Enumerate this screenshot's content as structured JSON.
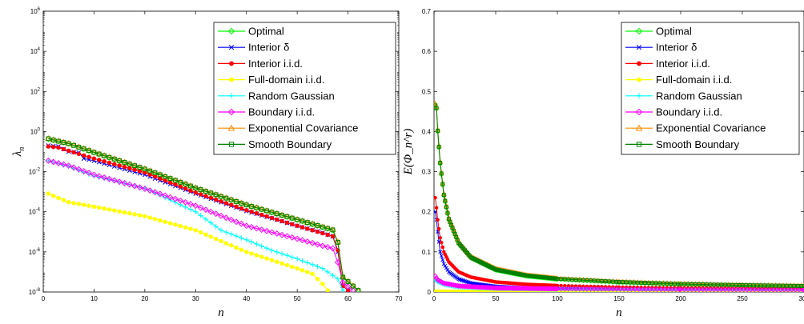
{
  "chart_data": [
    {
      "type": "line",
      "xlabel": "n",
      "ylabel": "λ_n",
      "ylabel_main": "λ",
      "ylabel_sub": "n",
      "xlim": [
        0,
        70
      ],
      "ylim": [
        1e-08,
        1000000.0
      ],
      "yscale": "log",
      "x_ticks": [
        0,
        10,
        20,
        30,
        40,
        50,
        60,
        70
      ],
      "y_ticks": [
        {
          "value": 1e-08,
          "base": "10",
          "exp": "-8"
        },
        {
          "value": 1e-06,
          "base": "10",
          "exp": "-6"
        },
        {
          "value": 0.0001,
          "base": "10",
          "exp": "-4"
        },
        {
          "value": 0.01,
          "base": "10",
          "exp": "-2"
        },
        {
          "value": 1,
          "base": "10",
          "exp": "0"
        },
        {
          "value": 100,
          "base": "10",
          "exp": "2"
        },
        {
          "value": 10000,
          "base": "10",
          "exp": "4"
        },
        {
          "value": 1000000,
          "base": "10",
          "exp": "6"
        }
      ],
      "grid": false,
      "legend_position": "top-right",
      "series": [
        {
          "name": "Optimal",
          "color": "#00ff00",
          "marker": "diamond",
          "points": [
            [
              1,
              0.42
            ],
            [
              5,
              0.25
            ],
            [
              10,
              0.09
            ],
            [
              20,
              0.013
            ],
            [
              30,
              0.0015
            ],
            [
              40,
              0.00022
            ],
            [
              50,
              4e-05
            ],
            [
              55,
              1.7e-05
            ],
            [
              57,
              1.2e-05
            ],
            [
              58,
              3e-06
            ],
            [
              59,
              5e-08
            ],
            [
              62,
              1.2e-08
            ]
          ]
        },
        {
          "name": "Interior δ",
          "color": "#0000ff",
          "marker": "x",
          "points": [
            [
              1,
              0.2
            ],
            [
              3,
              0.18
            ],
            [
              5,
              0.1
            ],
            [
              7,
              0.09
            ],
            [
              8,
              0.045
            ],
            [
              10,
              0.035
            ],
            [
              20,
              0.007
            ],
            [
              30,
              0.0008
            ],
            [
              40,
              0.00011
            ],
            [
              50,
              2e-05
            ],
            [
              55,
              9e-06
            ],
            [
              57,
              6e-06
            ],
            [
              58,
              1e-06
            ],
            [
              59,
              2e-08
            ],
            [
              60,
              1.2e-08
            ]
          ]
        },
        {
          "name": "Interior i.i.d.",
          "color": "#ff0000",
          "marker": "circle",
          "points": [
            [
              1,
              0.18
            ],
            [
              3,
              0.16
            ],
            [
              5,
              0.11
            ],
            [
              10,
              0.045
            ],
            [
              20,
              0.009
            ],
            [
              30,
              0.0009
            ],
            [
              40,
              0.00012
            ],
            [
              50,
              2e-05
            ],
            [
              55,
              8.5e-06
            ],
            [
              57,
              6e-06
            ],
            [
              58,
              1.2e-06
            ],
            [
              59,
              2e-08
            ],
            [
              60,
              1.2e-08
            ]
          ]
        },
        {
          "name": "Full-domain i.i.d.",
          "color": "#ffff00",
          "marker": "circle",
          "points": [
            [
              1,
              0.0008
            ],
            [
              5,
              0.0003
            ],
            [
              10,
              0.00018
            ],
            [
              20,
              6e-05
            ],
            [
              30,
              1.2e-05
            ],
            [
              40,
              1e-06
            ],
            [
              50,
              1.5e-07
            ],
            [
              53,
              8e-08
            ],
            [
              55,
              2.5e-08
            ],
            [
              56,
              1.2e-08
            ]
          ]
        },
        {
          "name": "Random Gaussian",
          "color": "#00ffff",
          "marker": "plus",
          "points": [
            [
              1,
              0.035
            ],
            [
              5,
              0.018
            ],
            [
              10,
              0.006
            ],
            [
              20,
              0.0015
            ],
            [
              30,
              0.0001
            ],
            [
              35,
              1.2e-05
            ],
            [
              40,
              4e-06
            ],
            [
              45,
              1.2e-06
            ],
            [
              50,
              4.5e-07
            ],
            [
              55,
              1.5e-07
            ],
            [
              58,
              4.5e-08
            ],
            [
              59,
              1.2e-08
            ]
          ]
        },
        {
          "name": "Boundary i.i.d.",
          "color": "#ff00ff",
          "marker": "diamond",
          "points": [
            [
              1,
              0.035
            ],
            [
              5,
              0.02
            ],
            [
              10,
              0.007
            ],
            [
              20,
              0.0014
            ],
            [
              30,
              0.0002
            ],
            [
              40,
              2e-05
            ],
            [
              50,
              4.5e-06
            ],
            [
              55,
              2e-06
            ],
            [
              57,
              1.5e-06
            ],
            [
              58,
              3e-07
            ],
            [
              59,
              3e-08
            ],
            [
              61,
              1.2e-08
            ]
          ]
        },
        {
          "name": "Exponential Covariance",
          "color": "#ff8c00",
          "marker": "triangle",
          "points": [
            [
              1,
              0.45
            ],
            [
              5,
              0.26
            ],
            [
              10,
              0.095
            ],
            [
              20,
              0.014
            ],
            [
              30,
              0.0016
            ],
            [
              40,
              0.00023
            ],
            [
              50,
              4.2e-05
            ],
            [
              55,
              1.8e-05
            ],
            [
              57,
              1.3e-05
            ],
            [
              58,
              3.2e-06
            ],
            [
              59,
              6e-08
            ],
            [
              62,
              1.2e-08
            ]
          ]
        },
        {
          "name": "Smooth Boundary",
          "color": "#008000",
          "marker": "square",
          "points": [
            [
              1,
              0.44
            ],
            [
              5,
              0.25
            ],
            [
              10,
              0.092
            ],
            [
              20,
              0.0135
            ],
            [
              30,
              0.00155
            ],
            [
              40,
              0.00022
            ],
            [
              50,
              4.1e-05
            ],
            [
              55,
              1.75e-05
            ],
            [
              57,
              1.25e-05
            ],
            [
              58,
              3e-06
            ],
            [
              59,
              5.5e-08
            ],
            [
              62,
              1.2e-08
            ]
          ]
        }
      ]
    },
    {
      "type": "line",
      "xlabel": "n",
      "ylabel": "E(Φ_n^r)",
      "xlim": [
        0,
        300
      ],
      "ylim": [
        0,
        0.7
      ],
      "yscale": "linear",
      "x_ticks": [
        0,
        50,
        100,
        150,
        200,
        250,
        300
      ],
      "y_ticks": [
        0,
        0.1,
        0.2,
        0.3,
        0.4,
        0.5,
        0.6,
        0.7
      ],
      "grid": false,
      "legend_position": "top-right",
      "series": [
        {
          "name": "Optimal",
          "color": "#00ff00",
          "marker": "diamond",
          "points": [
            [
              1,
              0.468
            ],
            [
              2,
              0.46
            ],
            [
              3,
              0.4
            ],
            [
              5,
              0.32
            ],
            [
              8,
              0.24
            ],
            [
              12,
              0.18
            ],
            [
              20,
              0.12
            ],
            [
              30,
              0.085
            ],
            [
              50,
              0.055
            ],
            [
              75,
              0.04
            ],
            [
              100,
              0.032
            ],
            [
              150,
              0.024
            ],
            [
              200,
              0.019
            ],
            [
              250,
              0.016
            ],
            [
              300,
              0.014
            ]
          ]
        },
        {
          "name": "Interior δ",
          "color": "#0000ff",
          "marker": "x",
          "points": [
            [
              1,
              0.2
            ],
            [
              2,
              0.18
            ],
            [
              3,
              0.15
            ],
            [
              5,
              0.1
            ],
            [
              8,
              0.07
            ],
            [
              12,
              0.05
            ],
            [
              20,
              0.032
            ],
            [
              30,
              0.022
            ],
            [
              50,
              0.014
            ],
            [
              75,
              0.01
            ],
            [
              100,
              0.008
            ],
            [
              150,
              0.006
            ],
            [
              200,
              0.005
            ],
            [
              300,
              0.0045
            ]
          ]
        },
        {
          "name": "Interior i.i.d.",
          "color": "#ff0000",
          "marker": "circle",
          "points": [
            [
              1,
              0.235
            ],
            [
              2,
              0.21
            ],
            [
              3,
              0.18
            ],
            [
              5,
              0.135
            ],
            [
              8,
              0.1
            ],
            [
              12,
              0.075
            ],
            [
              20,
              0.05
            ],
            [
              30,
              0.037
            ],
            [
              50,
              0.025
            ],
            [
              75,
              0.019
            ],
            [
              100,
              0.016
            ],
            [
              150,
              0.012
            ],
            [
              200,
              0.01
            ],
            [
              300,
              0.008
            ]
          ]
        },
        {
          "name": "Full-domain i.i.d.",
          "color": "#ffff00",
          "marker": "circle",
          "points": [
            [
              1,
              0.002
            ],
            [
              10,
              0.0015
            ],
            [
              50,
              0.001
            ],
            [
              100,
              0.0008
            ],
            [
              200,
              0.0006
            ],
            [
              300,
              0.0005
            ]
          ]
        },
        {
          "name": "Random Gaussian",
          "color": "#00ffff",
          "marker": "plus",
          "points": [
            [
              1,
              0.03
            ],
            [
              3,
              0.025
            ],
            [
              8,
              0.018
            ],
            [
              20,
              0.012
            ],
            [
              50,
              0.008
            ],
            [
              100,
              0.006
            ],
            [
              200,
              0.0045
            ],
            [
              300,
              0.004
            ]
          ]
        },
        {
          "name": "Boundary i.i.d.",
          "color": "#ff00ff",
          "marker": "diamond",
          "points": [
            [
              1,
              0.04
            ],
            [
              3,
              0.03
            ],
            [
              8,
              0.022
            ],
            [
              20,
              0.015
            ],
            [
              50,
              0.01
            ],
            [
              100,
              0.008
            ],
            [
              200,
              0.006
            ],
            [
              300,
              0.005
            ]
          ]
        },
        {
          "name": "Exponential Covariance",
          "color": "#ff8c00",
          "marker": "triangle",
          "points": [
            [
              1,
              0.47
            ],
            [
              2,
              0.462
            ],
            [
              3,
              0.405
            ],
            [
              5,
              0.325
            ],
            [
              8,
              0.245
            ],
            [
              12,
              0.185
            ],
            [
              20,
              0.125
            ],
            [
              30,
              0.088
            ],
            [
              50,
              0.058
            ],
            [
              75,
              0.042
            ],
            [
              100,
              0.034
            ],
            [
              150,
              0.026
            ],
            [
              200,
              0.021
            ],
            [
              250,
              0.018
            ],
            [
              300,
              0.016
            ]
          ]
        },
        {
          "name": "Smooth Boundary",
          "color": "#008000",
          "marker": "square",
          "points": [
            [
              1,
              0.465
            ],
            [
              2,
              0.458
            ],
            [
              3,
              0.402
            ],
            [
              5,
              0.322
            ],
            [
              8,
              0.242
            ],
            [
              12,
              0.182
            ],
            [
              20,
              0.122
            ],
            [
              30,
              0.086
            ],
            [
              50,
              0.056
            ],
            [
              75,
              0.041
            ],
            [
              100,
              0.033
            ],
            [
              150,
              0.025
            ],
            [
              200,
              0.02
            ],
            [
              250,
              0.017
            ],
            [
              300,
              0.015
            ]
          ]
        }
      ]
    }
  ]
}
